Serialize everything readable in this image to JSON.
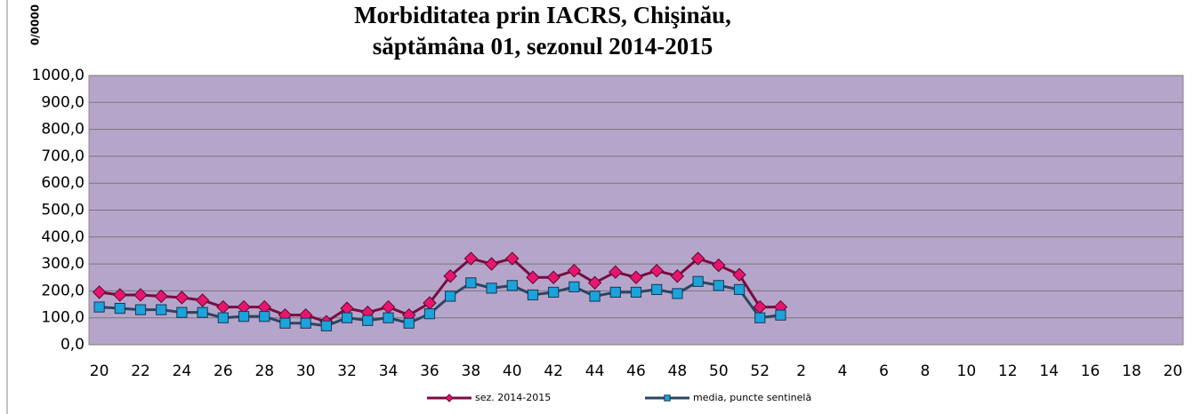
{
  "chart_data": {
    "type": "line",
    "title": "Morbiditatea prin IACRS, Chişinău,",
    "subtitle": "săptămâna 01, sezonul 2014-2015",
    "y_label": "0/0000",
    "categories": [
      "20",
      null,
      "22",
      null,
      "24",
      null,
      "26",
      null,
      "28",
      null,
      "30",
      null,
      "32",
      null,
      "34",
      null,
      "36",
      null,
      "38",
      null,
      "40",
      null,
      "42",
      null,
      "44",
      null,
      "46",
      null,
      "48",
      null,
      "50",
      null,
      "52",
      null,
      "2",
      null,
      "4",
      null,
      "6",
      null,
      "8",
      null,
      "10",
      null,
      "12",
      null,
      "14",
      null,
      "16",
      null,
      "18",
      null,
      "20"
    ],
    "series": [
      {
        "name": "sez. 2014-2015",
        "color": "#7a0b40",
        "marker_color": "#e8156f",
        "marker": "diamond",
        "values": [
          195,
          185,
          185,
          180,
          175,
          165,
          140,
          140,
          140,
          110,
          110,
          85,
          135,
          120,
          140,
          110,
          155,
          255,
          320,
          300,
          320,
          250,
          250,
          275,
          230,
          270,
          250,
          275,
          255,
          320,
          295,
          260,
          140,
          140,
          null,
          null,
          null,
          null,
          null,
          null,
          null,
          null,
          null,
          null,
          null,
          null,
          null,
          null,
          null,
          null,
          null,
          null,
          null
        ]
      },
      {
        "name": "media, puncte sentinelă",
        "color": "#2b4560",
        "marker_color": "#1aa3dc",
        "marker": "square",
        "values": [
          140,
          135,
          130,
          130,
          120,
          120,
          100,
          105,
          105,
          80,
          80,
          70,
          100,
          90,
          100,
          80,
          115,
          180,
          230,
          210,
          220,
          185,
          195,
          215,
          180,
          195,
          195,
          205,
          190,
          235,
          220,
          205,
          100,
          110,
          null,
          null,
          null,
          null,
          null,
          null,
          null,
          null,
          null,
          null,
          null,
          null,
          null,
          null,
          null,
          null,
          null,
          null,
          null
        ]
      }
    ],
    "ylim": [
      0,
      1000
    ],
    "yticks": [
      {
        "value": 0,
        "label": "0,0"
      },
      {
        "value": 100,
        "label": "100,0"
      },
      {
        "value": 200,
        "label": "200,0"
      },
      {
        "value": 300,
        "label": "300,0"
      },
      {
        "value": 400,
        "label": "400,0"
      },
      {
        "value": 500,
        "label": "500,0"
      },
      {
        "value": 600,
        "label": "600,0"
      },
      {
        "value": 700,
        "label": "700,0"
      },
      {
        "value": 800,
        "label": "800,0"
      },
      {
        "value": 900,
        "label": "900,0"
      },
      {
        "value": 1000,
        "label": "1000,0"
      }
    ],
    "grid": true,
    "plot_background": "#b6a5ca",
    "legend": "bottom"
  }
}
